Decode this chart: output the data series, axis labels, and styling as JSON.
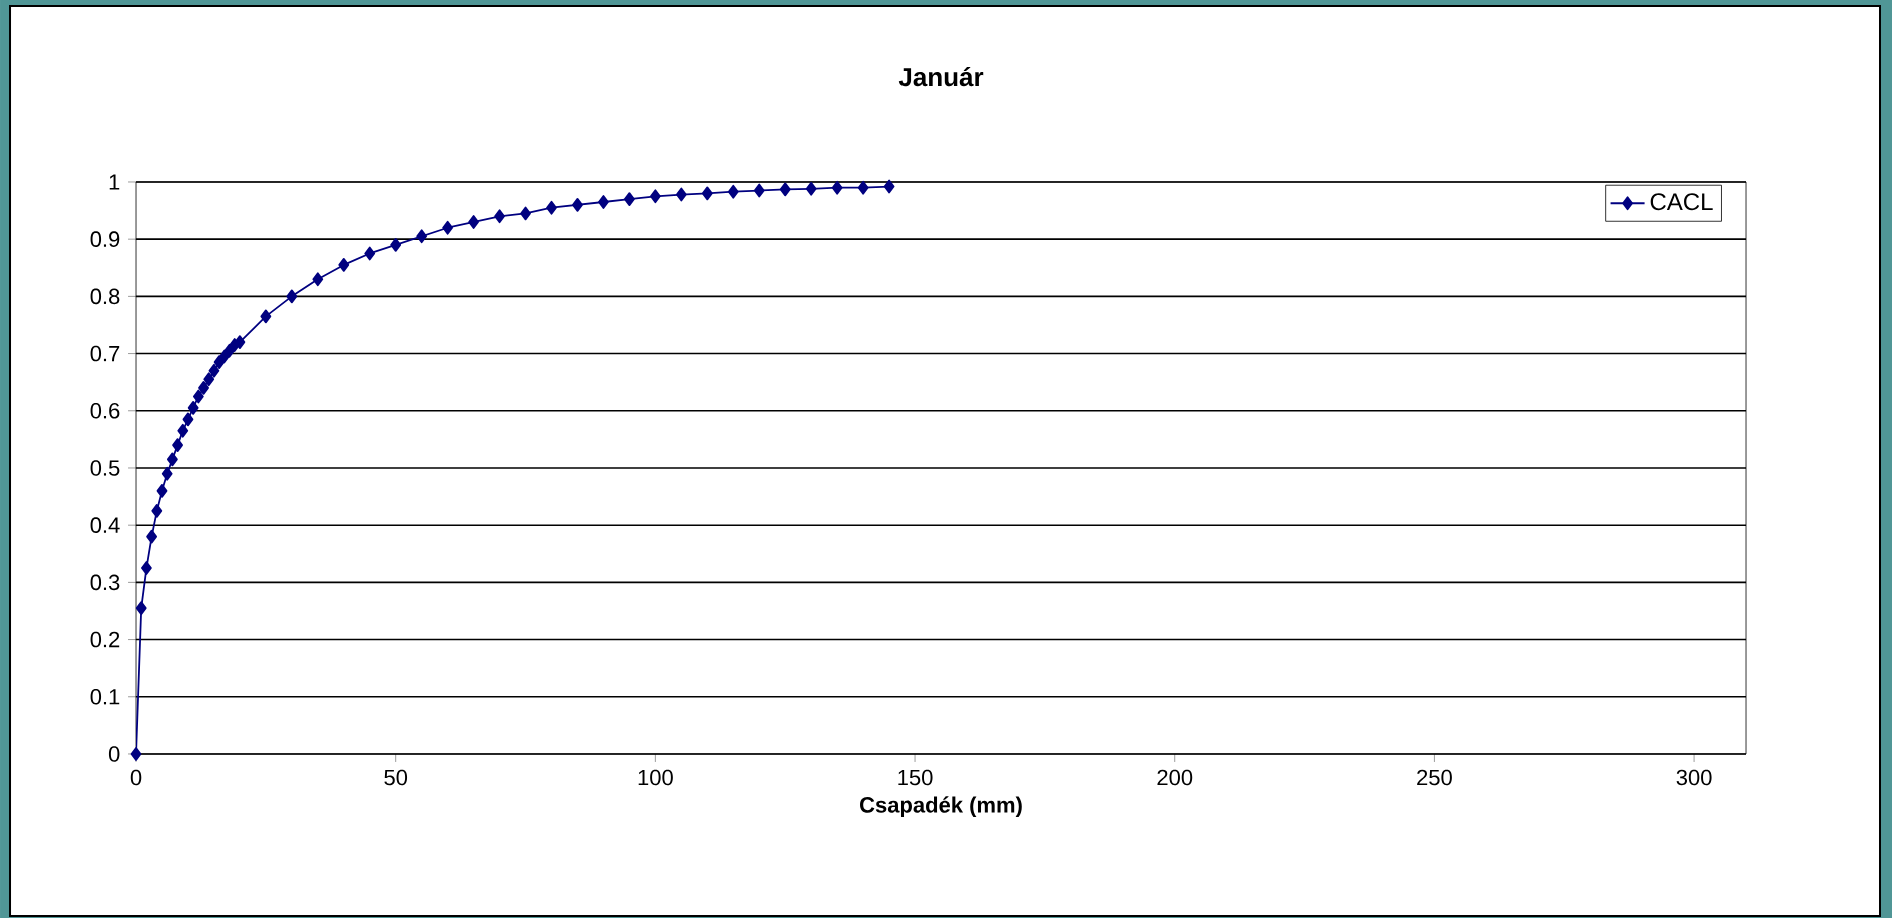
{
  "chart_data": {
    "type": "line",
    "title": "Január",
    "xlabel": "Csapadék (mm)",
    "x": [
      0,
      1,
      2,
      3,
      4,
      5,
      6,
      7,
      8,
      9,
      10,
      11,
      12,
      13,
      14,
      15,
      16,
      17,
      18,
      19,
      20,
      25,
      30,
      35,
      40,
      45,
      50,
      55,
      60,
      65,
      70,
      75,
      80,
      85,
      90,
      95,
      100,
      105,
      110,
      115,
      120,
      125,
      130,
      135,
      140,
      145
    ],
    "series": [
      {
        "name": "CACL",
        "color": "#000080",
        "values": [
          0,
          0.255,
          0.325,
          0.38,
          0.425,
          0.46,
          0.49,
          0.515,
          0.54,
          0.565,
          0.585,
          0.605,
          0.625,
          0.64,
          0.655,
          0.67,
          0.685,
          0.695,
          0.705,
          0.715,
          0.72,
          0.765,
          0.8,
          0.83,
          0.855,
          0.875,
          0.89,
          0.905,
          0.92,
          0.93,
          0.94,
          0.945,
          0.955,
          0.96,
          0.965,
          0.97,
          0.975,
          0.978,
          0.98,
          0.983,
          0.985,
          0.987,
          0.988,
          0.99,
          0.99,
          0.992
        ]
      }
    ],
    "xlim": [
      0,
      310
    ],
    "ylim": [
      0,
      1
    ],
    "xticks": [
      0,
      50,
      100,
      150,
      200,
      250,
      300
    ],
    "yticks": [
      0,
      0.1,
      0.2,
      0.3,
      0.4,
      0.5,
      0.6,
      0.7,
      0.8,
      0.9,
      1
    ],
    "grid": "y",
    "legend": "top right",
    "marker": "diamond",
    "line_style": "solid"
  }
}
